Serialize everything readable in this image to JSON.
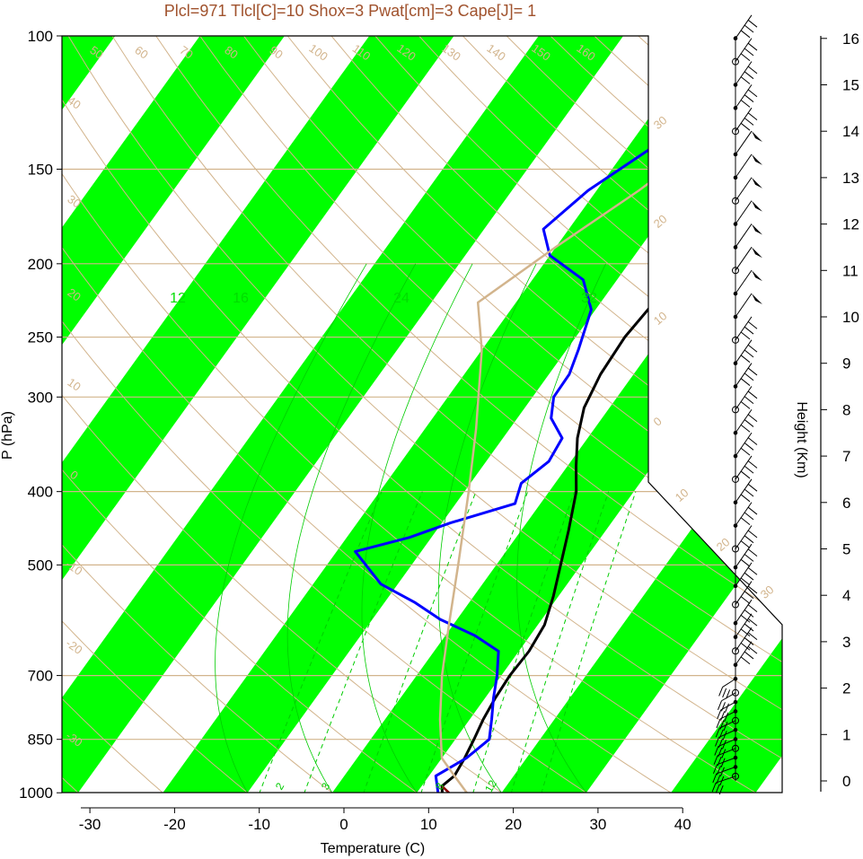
{
  "title": "Plcl=971 Tlcl[C]=10 Shox=3 Pwat[cm]=3 Cape[J]= 1",
  "xlabel": "Temperature (C)",
  "ylabel": "P (hPa)",
  "right_label": "Height (Km)",
  "colors": {
    "temperature": "#000000",
    "dewpoint": "#0000ff",
    "parcel": "#d2b48c",
    "bands": "#00ff00",
    "grid": "#d2b48c",
    "title": "#a0522d",
    "surface_parcel": "#8b0000"
  },
  "chart_data": {
    "type": "line",
    "title": "Plcl=971 Tlcl[C]=10 Shox=3 Pwat[cm]=3 Cape[J]= 1",
    "xlabel": "Temperature (C)",
    "ylabel": "P (hPa)",
    "xlim": [
      -33,
      52
    ],
    "ylim": [
      1050,
      100
    ],
    "x_ticks": [
      -30,
      -20,
      -10,
      0,
      10,
      20,
      30,
      40
    ],
    "x_tick_labels": [
      "-30",
      "-20",
      "-10",
      "0",
      "10",
      "20",
      "30",
      "40"
    ],
    "p_ticks": [
      100,
      150,
      200,
      250,
      300,
      400,
      500,
      700,
      850,
      1000
    ],
    "p_tick_labels": [
      "100",
      "150",
      "200",
      "250",
      "300",
      "400",
      "500",
      "700",
      "850",
      "1000"
    ],
    "height_ticks": [
      0,
      1,
      2,
      3,
      4,
      5,
      6,
      7,
      8,
      9,
      10,
      11,
      12,
      13,
      14,
      15,
      16
    ],
    "height_tick_labels": [
      "0",
      "1",
      "2",
      "3",
      "4",
      "5",
      "6",
      "7",
      "8",
      "9",
      "10",
      "11",
      "12",
      "13",
      "14",
      "15",
      "16"
    ],
    "series": [
      {
        "key": "temperature",
        "points": [
          [
            13.0,
            1000
          ],
          [
            12.4,
            980
          ],
          [
            13.0,
            950
          ],
          [
            12.7,
            900
          ],
          [
            12.2,
            850
          ],
          [
            11.6,
            800
          ],
          [
            11.2,
            750
          ],
          [
            11.0,
            700
          ],
          [
            11.2,
            650
          ],
          [
            10.8,
            600
          ],
          [
            9.4,
            550
          ],
          [
            7.6,
            500
          ],
          [
            5.6,
            450
          ],
          [
            3.2,
            400
          ],
          [
            1.0,
            370
          ],
          [
            -1.2,
            340
          ],
          [
            -3.0,
            310
          ],
          [
            -3.9,
            280
          ],
          [
            -4.2,
            250
          ],
          [
            -3.7,
            225
          ],
          [
            -1.0,
            210
          ],
          [
            1.5,
            195
          ],
          [
            5.0,
            180
          ],
          [
            9.5,
            165
          ],
          [
            13.5,
            150
          ],
          [
            17.0,
            140
          ],
          [
            19.5,
            130
          ],
          [
            21.5,
            120
          ],
          [
            22.5,
            113
          ],
          [
            24.5,
            106
          ],
          [
            26.2,
            101
          ]
        ]
      },
      {
        "key": "dewpoint",
        "points": [
          [
            12.5,
            1000
          ],
          [
            10.8,
            950
          ],
          [
            12.9,
            900
          ],
          [
            14.0,
            850
          ],
          [
            12.6,
            800
          ],
          [
            11.0,
            750
          ],
          [
            9.5,
            700
          ],
          [
            7.6,
            650
          ],
          [
            3.5,
            620
          ],
          [
            -2.0,
            590
          ],
          [
            -6.5,
            560
          ],
          [
            -12.0,
            530
          ],
          [
            -17.8,
            480
          ],
          [
            -12.6,
            460
          ],
          [
            -9.0,
            440
          ],
          [
            -3.0,
            415
          ],
          [
            -4.0,
            390
          ],
          [
            -2.6,
            365
          ],
          [
            -3.0,
            340
          ],
          [
            -6.0,
            320
          ],
          [
            -7.5,
            300
          ],
          [
            -7.6,
            280
          ],
          [
            -8.6,
            260
          ],
          [
            -10.5,
            230
          ],
          [
            -14.0,
            210
          ],
          [
            -20.0,
            195
          ],
          [
            -23.0,
            180
          ],
          [
            -21.0,
            160
          ],
          [
            -17.0,
            140
          ],
          [
            -12.0,
            120
          ],
          [
            -5.5,
            103
          ]
        ]
      },
      {
        "key": "parcel",
        "points": [
          [
            15.9,
            1000
          ],
          [
            13.0,
            950
          ],
          [
            10.0,
            900
          ],
          [
            6.5,
            800
          ],
          [
            3.0,
            700
          ],
          [
            -0.5,
            600
          ],
          [
            -4.5,
            500
          ],
          [
            -9.5,
            400
          ],
          [
            -14.0,
            330
          ],
          [
            -20.0,
            260
          ],
          [
            -24.5,
            225
          ],
          [
            -20.0,
            190
          ],
          [
            -15.0,
            160
          ],
          [
            -10.0,
            130
          ],
          [
            -6.0,
            110
          ]
        ]
      }
    ],
    "mixing_ratio_labels": [
      "2",
      "3",
      "8",
      "12"
    ],
    "mixing_ratio_upper_labels": [
      "12",
      "16",
      "24",
      "32"
    ],
    "isotherm_labels": [
      "-30",
      "-20",
      "-10",
      "0",
      "10",
      "20",
      "30",
      "40"
    ],
    "theta_labels": [
      "50",
      "60",
      "70",
      "80",
      "90",
      "100",
      "110",
      "120",
      "130",
      "140",
      "150",
      "160"
    ],
    "theta_left_labels": [
      "40",
      "30",
      "20",
      "10",
      "0",
      "-10",
      "-20",
      "-30"
    ],
    "skew_labels_right": [
      "30",
      "20",
      "10",
      "0",
      "10",
      "20",
      "30"
    ],
    "wind_barbs_km": [
      0.1,
      0.3,
      0.5,
      0.7,
      0.9,
      1.1,
      1.3,
      1.5,
      1.7,
      1.9,
      2.2,
      2.5,
      2.8,
      3.1,
      3.4,
      3.8,
      4.2,
      4.6,
      5.0,
      5.5,
      6.0,
      6.5,
      7.0,
      7.5,
      8.0,
      8.5,
      9.0,
      9.5,
      10.0,
      10.5,
      11.0,
      11.5,
      12.0,
      12.5,
      13.0,
      13.5,
      14.0,
      14.5,
      15.0,
      15.5,
      16.0
    ],
    "grid": true,
    "legend": "none"
  }
}
